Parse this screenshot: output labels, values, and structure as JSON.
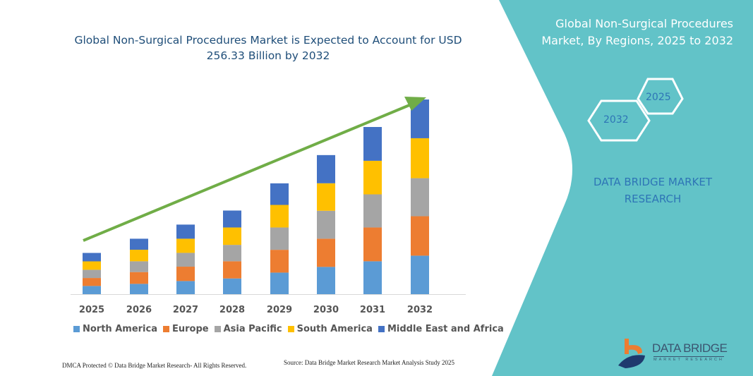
{
  "title": "Global Non-Surgical Procedures Market is Expected to Account for USD 256.33 Billion by 2032",
  "side_panel": {
    "title": "Global Non-Surgical Procedures Market, By Regions, 2025 to 2032",
    "hex_labels": [
      "2032",
      "2025"
    ],
    "brand": "DATA BRIDGE MARKET RESEARCH",
    "logo_text": "DATA BRIDGE",
    "logo_subtext": "MARKET RESEARCH",
    "color": "#62C3C8"
  },
  "footer": {
    "left": "DMCA Protected © Data Bridge Market Research-  All Rights Reserved.",
    "right": "Source: Data Bridge Market Research  Market Analysis Study 2025"
  },
  "chart_data": {
    "type": "bar",
    "stacked": true,
    "title": "Global Non-Surgical Procedures Market is Expected to Account for USD 256.33 Billion by 2032",
    "xlabel": "",
    "ylabel": "",
    "grid": false,
    "legend_position": "bottom",
    "trend_arrow_color": "#70AD47",
    "categories": [
      "2025",
      "2026",
      "2027",
      "2028",
      "2029",
      "2030",
      "2031",
      "2032"
    ],
    "series": [
      {
        "name": "North America",
        "color": "#5B9BD5",
        "values": [
          10.8,
          13.6,
          17.3,
          20.7,
          28.4,
          35.9,
          43.3,
          50.7
        ]
      },
      {
        "name": "Europe",
        "color": "#ED7D31",
        "values": [
          10.5,
          15.5,
          18.9,
          22.6,
          30.0,
          37.1,
          44.5,
          51.9
        ]
      },
      {
        "name": "Asia Pacific",
        "color": "#A5A5A5",
        "values": [
          10.8,
          14.2,
          18.2,
          21.6,
          29.4,
          36.8,
          43.6,
          50.1
        ]
      },
      {
        "name": "South America",
        "color": "#FFC000",
        "values": [
          11.1,
          15.2,
          18.6,
          22.9,
          29.7,
          36.2,
          44.2,
          52.6
        ]
      },
      {
        "name": "Middle East and Africa",
        "color": "#4472C4",
        "values": [
          11.1,
          14.5,
          18.6,
          22.3,
          28.4,
          37.1,
          44.5,
          51.0
        ]
      }
    ]
  }
}
